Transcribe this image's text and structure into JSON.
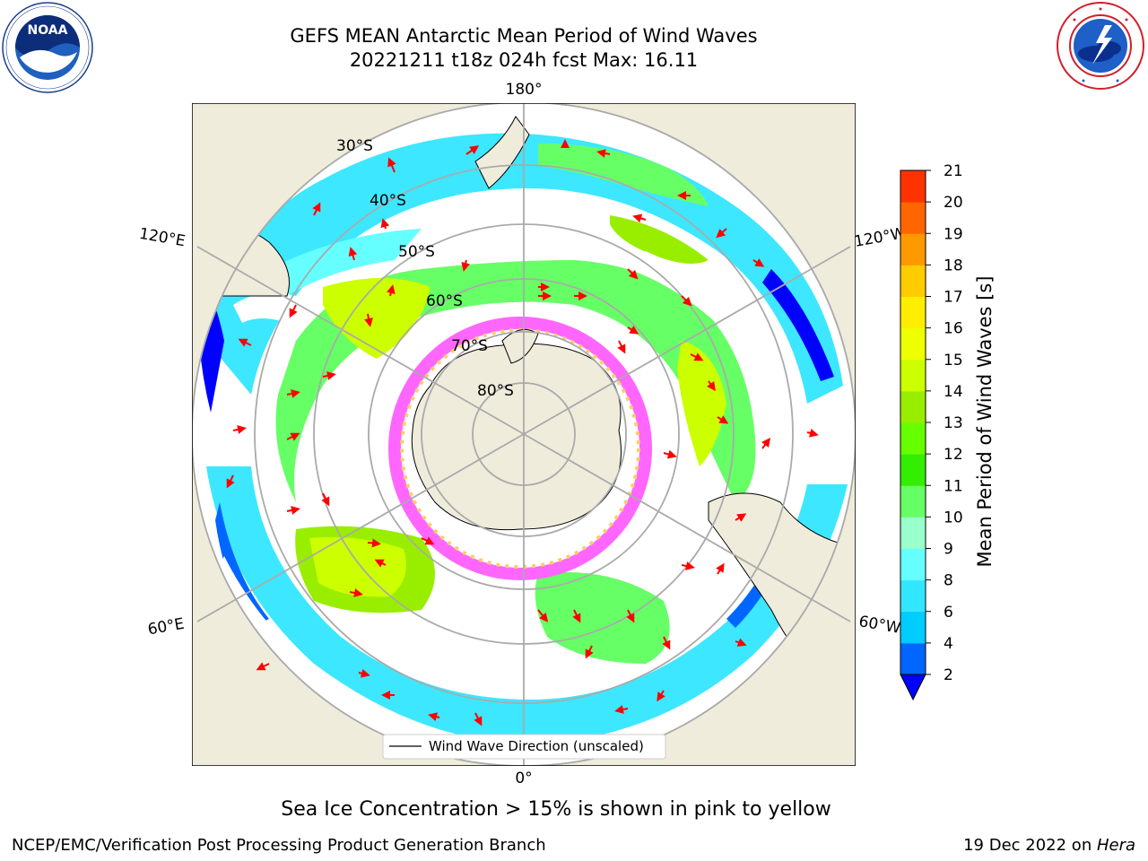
{
  "title_line1": "GEFS MEAN Antarctic Mean Period of Wind Waves",
  "title_line2": "20221211 t18z 024h fcst   Max: 16.11",
  "logos": {
    "noaa": {
      "text": "NOAA",
      "icon": "noaa-logo-icon"
    },
    "nws": {
      "icon": "nws-logo-icon"
    }
  },
  "map": {
    "projection": "south-polar-stereographic",
    "lon_labels": {
      "top": "180°",
      "upper_left": "120°E",
      "upper_right": "120°W",
      "lower_left": "60°E",
      "lower_right": "60°W",
      "bottom": "0°"
    },
    "lat_labels": [
      "30°S",
      "40°S",
      "50°S",
      "60°S",
      "70°S",
      "80°S"
    ],
    "legend": "Wind Wave Direction (unscaled)",
    "colors": {
      "land": "#efecdc",
      "sea_ice": "#ff66ff",
      "open_water": "#ffffff",
      "arrow": "#ff0000"
    }
  },
  "colorbar": {
    "title": "Mean Period of Wind Waves [s]",
    "ticks": [
      "2",
      "4",
      "6",
      "8",
      "9",
      "10",
      "11",
      "12",
      "13",
      "14",
      "15",
      "16",
      "17",
      "18",
      "19",
      "20",
      "21"
    ],
    "colors": [
      "#0066ff",
      "#00ccff",
      "#33e6ff",
      "#66ffff",
      "#99ffcc",
      "#66ff66",
      "#33ee00",
      "#66ff00",
      "#99ee00",
      "#ccff00",
      "#eeff00",
      "#ffee00",
      "#ffcc00",
      "#ff9900",
      "#ff6600",
      "#ff3300"
    ],
    "extend_color": "#0000ff"
  },
  "footnote": "Sea Ice Concentration > 15% is shown in pink to yellow",
  "credit_left": "NCEP/EMC/Verification Post Processing Product Generation Branch",
  "credit_right_prefix": "19 Dec 2022 on ",
  "credit_right_host": "Hera"
}
